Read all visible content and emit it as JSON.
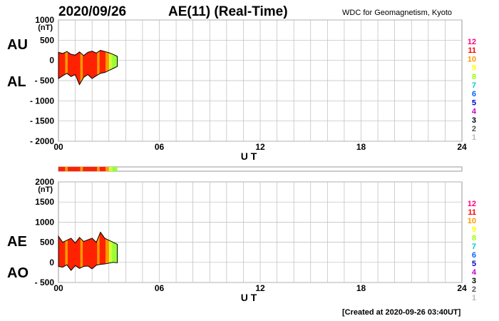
{
  "header": {
    "date": "2020/09/26",
    "index": "AE(11) (Real-Time)",
    "credit": "WDC for Geomagnetism, Kyoto"
  },
  "footer": {
    "created": "[Created at 2020-09-26 03:40UT]"
  },
  "station_legend": {
    "labels": [
      "12",
      "11",
      "10",
      "9",
      "8",
      "7",
      "6",
      "5",
      "4",
      "3",
      "2",
      "1"
    ],
    "colors": [
      "#ff0080",
      "#ff0000",
      "#ff9900",
      "#ffff00",
      "#99ff00",
      "#00cccc",
      "#0066ff",
      "#0000cc",
      "#cc00cc",
      "#000000",
      "#555555",
      "#bbbbbb"
    ]
  },
  "chart_data": [
    {
      "type": "area",
      "panel": "top",
      "series_labels": [
        "AU",
        "AL"
      ],
      "yunit": "(nT)",
      "ylim": [
        -2000,
        1000
      ],
      "yticks": [
        "1000",
        "500",
        "0",
        "- 500",
        "- 1000",
        "- 1500",
        "- 2000"
      ],
      "xticks": [
        "00",
        "06",
        "12",
        "18",
        "24"
      ],
      "xlabel": "U T",
      "xlim": [
        0,
        24
      ],
      "grid": true,
      "x": [
        0.0,
        0.25,
        0.5,
        0.75,
        1.0,
        1.25,
        1.5,
        1.75,
        2.0,
        2.25,
        2.5,
        2.75,
        3.0,
        3.25,
        3.5
      ],
      "AU": [
        200,
        170,
        220,
        150,
        130,
        210,
        120,
        200,
        230,
        180,
        250,
        220,
        190,
        150,
        100
      ],
      "AL": [
        -450,
        -380,
        -320,
        -400,
        -350,
        -600,
        -420,
        -350,
        -450,
        -380,
        -320,
        -300,
        -250,
        -200,
        -150
      ],
      "stations_color_x": [
        0.0,
        0.4,
        0.55,
        1.3,
        1.45,
        2.3,
        2.45,
        2.8,
        3.0,
        3.2
      ],
      "stations_colors": [
        "#ff2200",
        "#ff9900",
        "#ff2200",
        "#ff9900",
        "#ff2200",
        "#ff9900",
        "#ff2200",
        "#ff9900",
        "#ccff33",
        "#99ff33"
      ]
    },
    {
      "type": "area",
      "panel": "bottom",
      "series_labels": [
        "AE",
        "AO"
      ],
      "yunit": "(nT)",
      "ylim": [
        -500,
        2000
      ],
      "yticks": [
        "2000",
        "1500",
        "1000",
        "500",
        "0",
        "- 500"
      ],
      "xticks": [
        "00",
        "06",
        "12",
        "18",
        "24"
      ],
      "xlabel": "U T",
      "xlim": [
        0,
        24
      ],
      "grid": true,
      "x": [
        0.0,
        0.25,
        0.5,
        0.75,
        1.0,
        1.25,
        1.5,
        1.75,
        2.0,
        2.25,
        2.5,
        2.75,
        3.0,
        3.25,
        3.5
      ],
      "upper": [
        650,
        500,
        550,
        600,
        480,
        620,
        520,
        560,
        600,
        500,
        750,
        600,
        550,
        500,
        450
      ],
      "lower": [
        -100,
        -120,
        -60,
        -200,
        -80,
        -150,
        -100,
        -90,
        -160,
        -70,
        -50,
        -40,
        -20,
        0,
        -10
      ]
    }
  ]
}
